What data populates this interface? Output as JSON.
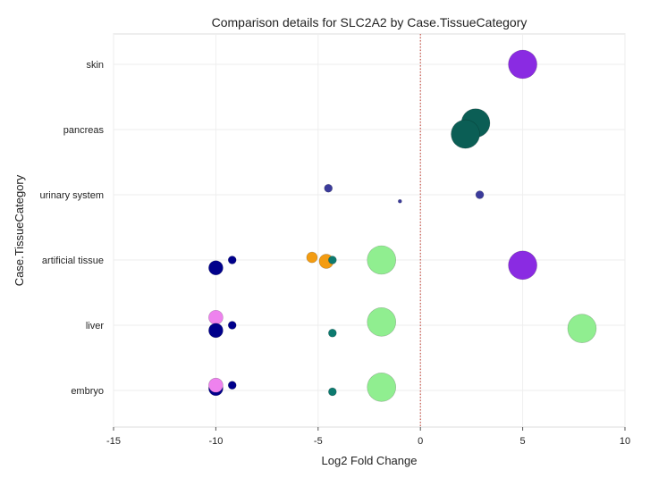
{
  "chart_data": {
    "type": "scatter",
    "title": "Comparison details for SLC2A2 by Case.TissueCategory",
    "xlabel": "Log2 Fold Change",
    "ylabel": "Case.TissueCategory",
    "xlim": [
      -15,
      10
    ],
    "xticks": [
      "-15",
      "-10",
      "-5",
      "0",
      "5",
      "10"
    ],
    "categories": [
      "skin",
      "pancreas",
      "urinary system",
      "artificial tissue",
      "liver",
      "embryo"
    ],
    "reference_line": {
      "x": 0,
      "style": "dotted",
      "color": "#c0392b"
    },
    "grid": true,
    "legend": "none",
    "points": [
      {
        "category": "skin",
        "x": 5.0,
        "offset": 0.0,
        "size": "large",
        "color": "#8a2be2"
      },
      {
        "category": "pancreas",
        "x": 2.7,
        "offset": 0.1,
        "size": "large",
        "color": "#0b5e55"
      },
      {
        "category": "pancreas",
        "x": 2.2,
        "offset": -0.07,
        "size": "large",
        "color": "#0b5e55"
      },
      {
        "category": "urinary system",
        "x": -4.5,
        "offset": 0.1,
        "size": "small",
        "color": "#3b3b9b"
      },
      {
        "category": "urinary system",
        "x": -1.0,
        "offset": -0.1,
        "size": "tiny",
        "color": "#3b3b9b"
      },
      {
        "category": "urinary system",
        "x": 2.9,
        "offset": 0.0,
        "size": "small",
        "color": "#3b3b9b"
      },
      {
        "category": "artificial tissue",
        "x": -10.0,
        "offset": -0.12,
        "size": "medium",
        "color": "#00008b"
      },
      {
        "category": "artificial tissue",
        "x": -9.2,
        "offset": 0.0,
        "size": "small",
        "color": "#00008b"
      },
      {
        "category": "artificial tissue",
        "x": -5.3,
        "offset": 0.04,
        "size": "small-medium",
        "color": "#f39c12"
      },
      {
        "category": "artificial tissue",
        "x": -4.6,
        "offset": -0.02,
        "size": "medium",
        "color": "#f39c12"
      },
      {
        "category": "artificial tissue",
        "x": -4.3,
        "offset": 0.0,
        "size": "small",
        "color": "#0d7a6f"
      },
      {
        "category": "artificial tissue",
        "x": -1.9,
        "offset": 0.0,
        "size": "large",
        "color": "#90ee90"
      },
      {
        "category": "artificial tissue",
        "x": 5.0,
        "offset": -0.08,
        "size": "large",
        "color": "#8a2be2"
      },
      {
        "category": "liver",
        "x": -10.0,
        "offset": 0.12,
        "size": "medium",
        "color": "#ee82ee"
      },
      {
        "category": "liver",
        "x": -10.0,
        "offset": -0.08,
        "size": "medium",
        "color": "#00008b"
      },
      {
        "category": "liver",
        "x": -9.2,
        "offset": 0.0,
        "size": "small",
        "color": "#00008b"
      },
      {
        "category": "liver",
        "x": -4.3,
        "offset": -0.12,
        "size": "small",
        "color": "#0d7a6f"
      },
      {
        "category": "liver",
        "x": -1.9,
        "offset": 0.05,
        "size": "large",
        "color": "#90ee90"
      },
      {
        "category": "liver",
        "x": 7.9,
        "offset": -0.05,
        "size": "large",
        "color": "#90ee90"
      },
      {
        "category": "embryo",
        "x": -10.0,
        "offset": 0.03,
        "size": "medium",
        "color": "#00008b"
      },
      {
        "category": "embryo",
        "x": -10.0,
        "offset": 0.08,
        "size": "medium",
        "color": "#ee82ee"
      },
      {
        "category": "embryo",
        "x": -9.2,
        "offset": 0.08,
        "size": "small",
        "color": "#00008b"
      },
      {
        "category": "embryo",
        "x": -4.3,
        "offset": -0.02,
        "size": "small",
        "color": "#0d7a6f"
      },
      {
        "category": "embryo",
        "x": -1.9,
        "offset": 0.05,
        "size": "large",
        "color": "#90ee90"
      }
    ]
  }
}
